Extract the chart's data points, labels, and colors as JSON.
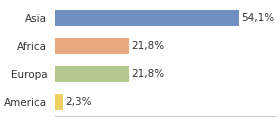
{
  "categories": [
    "America",
    "Europa",
    "Africa",
    "Asia"
  ],
  "values": [
    2.3,
    21.8,
    21.8,
    54.1
  ],
  "labels": [
    "2,3%",
    "21,8%",
    "21,8%",
    "54,1%"
  ],
  "bar_colors": [
    "#f0d060",
    "#b5c98e",
    "#e8a97e",
    "#6e8fbf"
  ],
  "background_color": "#ffffff",
  "xlim": [
    0,
    65
  ],
  "label_fontsize": 7.5,
  "category_fontsize": 7.5
}
